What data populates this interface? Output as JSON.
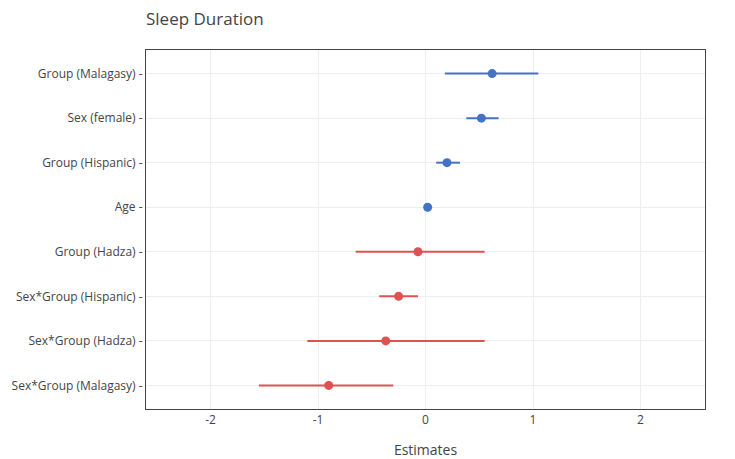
{
  "chart_data": {
    "type": "forest",
    "title": "Sleep Duration",
    "xlabel": "Estimates",
    "categories": [
      "Group (Malagasy) -",
      "Sex (female) -",
      "Group (Hispanic) -",
      "Age -",
      "Group (Hadza) -",
      "Sex*Group (Hispanic) -",
      "Sex*Group (Hadza) -",
      "Sex*Group (Malagasy) -"
    ],
    "values": [
      0.62,
      0.52,
      0.2,
      0.02,
      -0.07,
      -0.25,
      -0.37,
      -0.9
    ],
    "ci_low": [
      0.18,
      0.38,
      0.1,
      0.02,
      -0.65,
      -0.43,
      -1.1,
      -1.55
    ],
    "ci_high": [
      1.05,
      0.68,
      0.32,
      0.02,
      0.55,
      -0.07,
      0.55,
      -0.3
    ],
    "colors": [
      "#4472c4",
      "#4472c4",
      "#4472c4",
      "#4472c4",
      "#e05252",
      "#e05252",
      "#e05252",
      "#e05252"
    ],
    "xlim": [
      -2.6,
      2.6
    ],
    "xticks": [
      -2,
      -1,
      0,
      1,
      2
    ],
    "grid": true
  }
}
